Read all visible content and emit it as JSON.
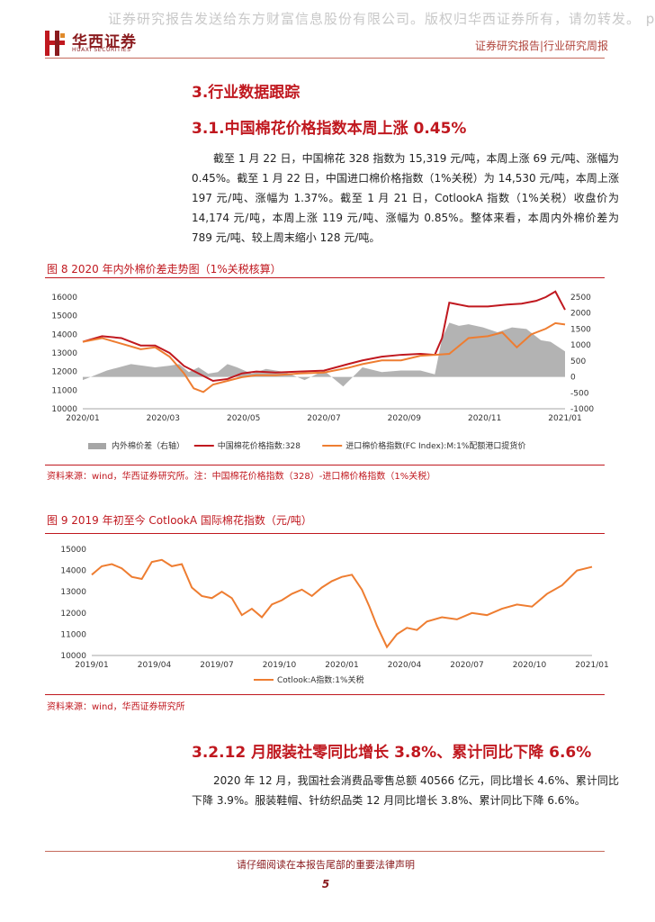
{
  "header": {
    "watermark": "证券研究报告发送给东方财富信息股份有限公司。版权归华西证券所有，请勿转发。 p",
    "logo_cn": "华西证券",
    "logo_en": "HUAXI SECURITIES",
    "right_text": "证券研究报告|行业研究周报"
  },
  "section3": {
    "title": "3.行业数据跟踪",
    "sub1_title": "3.1.中国棉花价格指数本周上涨 0.45%",
    "sub1_para": "截至 1 月 22 日，中国棉花 328 指数为 15,319 元/吨，本周上涨 69 元/吨、涨幅为 0.45%。截至 1 月 22 日，中国进口棉价格指数（1%关税）为 14,530 元/吨，本周上涨 197 元/吨、涨幅为 1.37%。截至 1 月 21 日，CotlookA 指数（1%关税）收盘价为 14,174 元/吨，本周上涨 119 元/吨、涨幅为 0.85%。整体来看，本周内外棉价差为 789 元/吨、较上周末缩小 128 元/吨。",
    "sub2_title": "3.2.12 月服装社零同比增长 3.8%、累计同比下降 6.6%",
    "sub2_para": "2020 年 12 月，我国社会消费品零售总额 40566 亿元，同比增长 4.6%、累计同比下降 3.9%。服装鞋帽、针纺织品类 12 月同比增长 3.8%、累计同比下降 6.6%。"
  },
  "figure8": {
    "title": "图 8 2020 年内外棉价差走势图（1%关税核算）",
    "source": "资料来源：wind，华西证券研究所。注：中国棉花价格指数（328）-进口棉价格指数（1%关税）"
  },
  "figure9": {
    "title": "图 9 2019 年初至今 CotlookA 国际棉花指数（元/吨）",
    "source": "资料来源：wind，华西证券研究所"
  },
  "footer": {
    "disclaimer": "请仔细阅读在本报告尾部的重要法律声明",
    "page_number": "5"
  },
  "chart_data": [
    {
      "type": "line",
      "x_tick_labels": [
        "2020/01",
        "2020/03",
        "2020/05",
        "2020/07",
        "2020/09",
        "2020/11",
        "2021/01"
      ],
      "ylim": [
        10000,
        16000
      ],
      "y_ticks": [
        10000,
        11000,
        12000,
        13000,
        14000,
        15000,
        16000
      ],
      "ylim_right": [
        -1000,
        2500
      ],
      "y_ticks_right": [
        -1000,
        -500,
        0,
        500,
        1000,
        1500,
        2000,
        2500
      ],
      "legend_position": "bottom",
      "series": [
        {
          "name": "内外棉价差（右轴）",
          "kind": "area",
          "axis": "right",
          "color": "#a6a6a6",
          "x": [
            0.0,
            0.05,
            0.1,
            0.15,
            0.18,
            0.2,
            0.22,
            0.24,
            0.26,
            0.28,
            0.3,
            0.32,
            0.35,
            0.38,
            0.42,
            0.46,
            0.5,
            0.54,
            0.58,
            0.62,
            0.66,
            0.7,
            0.73,
            0.745,
            0.76,
            0.78,
            0.8,
            0.83,
            0.86,
            0.89,
            0.92,
            0.95,
            0.97,
            1.0
          ],
          "values": [
            -100,
            200,
            400,
            300,
            350,
            400,
            150,
            300,
            100,
            150,
            400,
            300,
            100,
            250,
            150,
            -100,
            200,
            -300,
            300,
            150,
            200,
            200,
            80,
            1200,
            1700,
            1600,
            1650,
            1550,
            1400,
            1550,
            1500,
            1150,
            1100,
            800
          ]
        },
        {
          "name": "中国棉花价格指数:328",
          "axis": "left",
          "color": "#c0181f",
          "x": [
            0.0,
            0.04,
            0.08,
            0.12,
            0.15,
            0.18,
            0.21,
            0.24,
            0.27,
            0.3,
            0.33,
            0.36,
            0.4,
            0.45,
            0.5,
            0.55,
            0.58,
            0.62,
            0.66,
            0.7,
            0.73,
            0.745,
            0.76,
            0.8,
            0.84,
            0.88,
            0.91,
            0.94,
            0.96,
            0.98,
            1.0
          ],
          "values": [
            13600,
            13900,
            13800,
            13400,
            13400,
            13000,
            12300,
            11900,
            11500,
            11600,
            11900,
            12000,
            11950,
            12000,
            12050,
            12400,
            12600,
            12800,
            12900,
            12950,
            12900,
            13800,
            15700,
            15500,
            15500,
            15600,
            15650,
            15800,
            16000,
            16300,
            15320
          ]
        },
        {
          "name": "进口棉价格指数(FC Index):M:1%配额港口提货价",
          "axis": "left",
          "color": "#ee7d31",
          "x": [
            0.0,
            0.04,
            0.08,
            0.12,
            0.15,
            0.18,
            0.21,
            0.23,
            0.25,
            0.27,
            0.3,
            0.33,
            0.36,
            0.4,
            0.45,
            0.5,
            0.55,
            0.58,
            0.62,
            0.66,
            0.7,
            0.73,
            0.76,
            0.8,
            0.84,
            0.87,
            0.9,
            0.93,
            0.96,
            0.98,
            1.0
          ],
          "values": [
            13600,
            13800,
            13500,
            13200,
            13300,
            12800,
            11900,
            11100,
            10900,
            11300,
            11500,
            11700,
            11800,
            11800,
            11900,
            11950,
            12200,
            12400,
            12600,
            12600,
            12850,
            12900,
            12950,
            13800,
            13900,
            14100,
            13300,
            14000,
            14300,
            14600,
            14530
          ]
        }
      ]
    },
    {
      "type": "line",
      "x_tick_labels": [
        "2019/01",
        "2019/04",
        "2019/07",
        "2019/10",
        "2020/01",
        "2020/04",
        "2020/07",
        "2020/10",
        "2021/01"
      ],
      "ylim": [
        10000,
        15000
      ],
      "y_ticks": [
        10000,
        11000,
        12000,
        13000,
        14000,
        15000
      ],
      "legend_position": "bottom",
      "series": [
        {
          "name": "Cotlook:A指数:1%关税",
          "color": "#ee7d31",
          "x": [
            0.0,
            0.02,
            0.04,
            0.06,
            0.08,
            0.1,
            0.12,
            0.14,
            0.16,
            0.18,
            0.2,
            0.22,
            0.24,
            0.26,
            0.28,
            0.3,
            0.32,
            0.34,
            0.36,
            0.38,
            0.4,
            0.42,
            0.44,
            0.46,
            0.48,
            0.5,
            0.52,
            0.54,
            0.555,
            0.57,
            0.59,
            0.61,
            0.63,
            0.65,
            0.67,
            0.7,
            0.73,
            0.76,
            0.79,
            0.82,
            0.85,
            0.88,
            0.91,
            0.94,
            0.97,
            1.0
          ],
          "values": [
            13800,
            14200,
            14300,
            14100,
            13700,
            13600,
            14400,
            14500,
            14200,
            14300,
            13200,
            12800,
            12700,
            13000,
            12700,
            11900,
            12200,
            11800,
            12400,
            12600,
            12900,
            13100,
            12800,
            13200,
            13500,
            13700,
            13800,
            13100,
            12300,
            11400,
            10400,
            11000,
            11300,
            11200,
            11600,
            11800,
            11700,
            12000,
            11900,
            12200,
            12400,
            12300,
            12900,
            13300,
            14000,
            14170
          ]
        }
      ]
    }
  ]
}
